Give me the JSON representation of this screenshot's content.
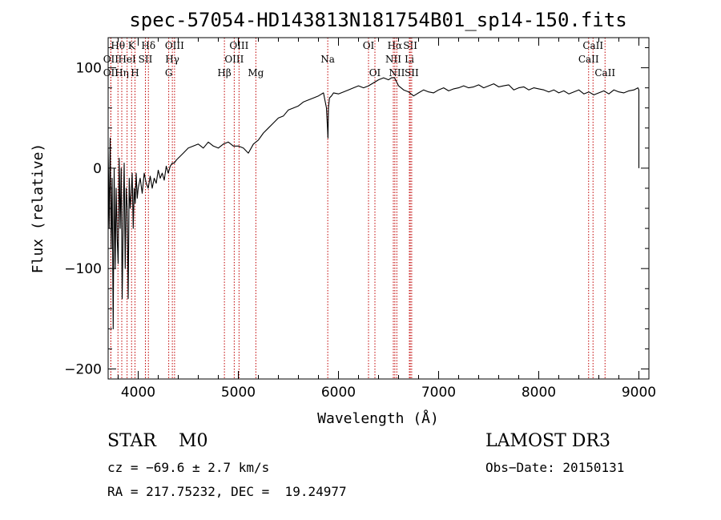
{
  "chart_data": {
    "type": "line",
    "title": "spec-57054-HD143813N181754B01_sp14-150.fits",
    "xlabel": "Wavelength (Å)",
    "ylabel": "Flux (relative)",
    "xlim": [
      3700,
      9100
    ],
    "ylim": [
      -210,
      130
    ],
    "xticks": [
      4000,
      5000,
      6000,
      7000,
      8000,
      9000
    ],
    "yticks": [
      -200,
      -100,
      0,
      100
    ],
    "grid": false,
    "series": [
      {
        "x": [
          3700,
          3710,
          3720,
          3730,
          3740,
          3750,
          3760,
          3770,
          3780,
          3790,
          3800,
          3810,
          3820,
          3830,
          3840,
          3850,
          3860,
          3870,
          3880,
          3890,
          3900,
          3910,
          3920,
          3930,
          3940,
          3950,
          3960,
          3970,
          3980,
          3990,
          4000,
          4020,
          4040,
          4060,
          4080,
          4100,
          4120,
          4140,
          4160,
          4180,
          4200,
          4220,
          4240,
          4260,
          4280,
          4300,
          4320,
          4340,
          4360,
          4380,
          4400,
          4450,
          4500,
          4550,
          4600,
          4650,
          4700,
          4750,
          4800,
          4850,
          4900,
          4950,
          5000,
          5050,
          5100,
          5150,
          5200,
          5250,
          5300,
          5350,
          5400,
          5450,
          5500,
          5550,
          5600,
          5650,
          5700,
          5750,
          5800,
          5850,
          5880,
          5890,
          5895,
          5900,
          5910,
          5930,
          5950,
          6000,
          6050,
          6100,
          6150,
          6200,
          6250,
          6300,
          6350,
          6400,
          6450,
          6500,
          6530,
          6560,
          6580,
          6600,
          6650,
          6700,
          6750,
          6800,
          6850,
          6900,
          6950,
          7000,
          7050,
          7100,
          7150,
          7200,
          7250,
          7300,
          7350,
          7400,
          7450,
          7500,
          7550,
          7600,
          7650,
          7700,
          7750,
          7800,
          7850,
          7900,
          7950,
          8000,
          8050,
          8100,
          8150,
          8200,
          8250,
          8300,
          8350,
          8400,
          8450,
          8500,
          8550,
          8600,
          8650,
          8700,
          8750,
          8800,
          8850,
          8900,
          8950,
          8990,
          9000,
          9000
        ],
        "values": [
          20,
          -60,
          30,
          -80,
          -10,
          -160,
          0,
          -100,
          -20,
          -70,
          -95,
          10,
          -60,
          0,
          -130,
          -50,
          5,
          -100,
          -20,
          -40,
          -130,
          -10,
          -40,
          -25,
          -5,
          -60,
          -20,
          -35,
          -5,
          -30,
          -20,
          -10,
          -25,
          -5,
          -15,
          -20,
          -8,
          -20,
          -10,
          -15,
          -2,
          -10,
          -5,
          -12,
          2,
          -5,
          2,
          5,
          5,
          8,
          10,
          15,
          20,
          22,
          24,
          20,
          26,
          22,
          20,
          24,
          26,
          22,
          22,
          20,
          15,
          24,
          28,
          35,
          40,
          45,
          50,
          52,
          58,
          60,
          62,
          66,
          68,
          70,
          72,
          75,
          60,
          40,
          30,
          60,
          70,
          72,
          75,
          74,
          76,
          78,
          80,
          82,
          80,
          82,
          85,
          88,
          90,
          88,
          90,
          90,
          86,
          82,
          78,
          76,
          72,
          75,
          78,
          76,
          75,
          78,
          80,
          77,
          79,
          80,
          82,
          80,
          81,
          83,
          80,
          82,
          84,
          81,
          82,
          83,
          78,
          80,
          81,
          78,
          80,
          79,
          78,
          76,
          78,
          75,
          77,
          74,
          76,
          78,
          74,
          76,
          73,
          75,
          77,
          74,
          78,
          76,
          75,
          77,
          78,
          80,
          78,
          0
        ],
        "color": "#000000"
      }
    ],
    "lines": [
      {
        "label": "Hθ",
        "x": 3798,
        "row": 1
      },
      {
        "label": "OII",
        "x": 3727,
        "row": 2
      },
      {
        "label": "OII",
        "x": 3727,
        "row": 3
      },
      {
        "label": "Hη",
        "x": 3836,
        "row": 3
      },
      {
        "label": "K",
        "x": 3934,
        "row": 1
      },
      {
        "label": "HeI",
        "x": 3889,
        "row": 2
      },
      {
        "label": "H",
        "x": 3968,
        "row": 3
      },
      {
        "label": "Hδ",
        "x": 4102,
        "row": 1
      },
      {
        "label": "SII",
        "x": 4072,
        "row": 2
      },
      {
        "label": "OIII",
        "x": 4363,
        "row": 1
      },
      {
        "label": "Hγ",
        "x": 4341,
        "row": 2
      },
      {
        "label": "G",
        "x": 4305,
        "row": 3
      },
      {
        "label": "Hβ",
        "x": 4861,
        "row": 3
      },
      {
        "label": "OIII",
        "x": 4959,
        "row": 2
      },
      {
        "label": "OIII",
        "x": 5007,
        "row": 1
      },
      {
        "label": "Mg",
        "x": 5175,
        "row": 3
      },
      {
        "label": "Na",
        "x": 5893,
        "row": 2
      },
      {
        "label": "OI",
        "x": 6300,
        "row": 1
      },
      {
        "label": "OI",
        "x": 6364,
        "row": 3
      },
      {
        "label": "Hα",
        "x": 6563,
        "row": 1
      },
      {
        "label": "NII",
        "x": 6548,
        "row": 2
      },
      {
        "label": "NII",
        "x": 6583,
        "row": 3
      },
      {
        "label": "SII",
        "x": 6717,
        "row": 1
      },
      {
        "label": "Li",
        "x": 6708,
        "row": 2
      },
      {
        "label": "SII",
        "x": 6731,
        "row": 3
      },
      {
        "label": "CaII",
        "x": 8542,
        "row": 1
      },
      {
        "label": "CaII",
        "x": 8498,
        "row": 2
      },
      {
        "label": "CaII",
        "x": 8662,
        "row": 3
      }
    ]
  },
  "info": {
    "class": "STAR    M0",
    "survey": "LAMOST DR3",
    "cz": "cz = −69.6 ± 2.7 km/s",
    "obs_date": "Obs−Date: 20150131",
    "radec": "RA = 217.75232, DEC =  19.24977"
  }
}
